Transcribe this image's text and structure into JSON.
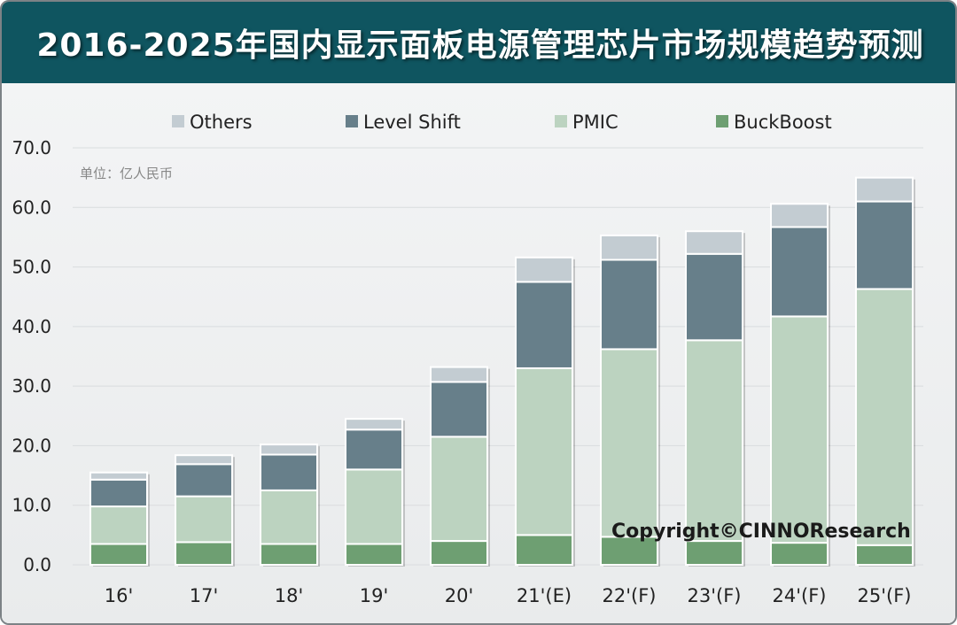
{
  "title": "2016-2025年国内显示面板电源管理芯片市场规模趋势预测",
  "unit_note": "单位：亿人民币",
  "copyright": "Copyright©CINNOResearch",
  "colors": {
    "BuckBoost": "#6e9f72",
    "PMIC": "#bcd3c0",
    "Level Shift": "#677f8a",
    "Others": "#c3ccd2"
  },
  "chart_data": {
    "type": "bar",
    "stacked": true,
    "title": "2016-2025年国内显示面板电源管理芯片市场规模趋势预测",
    "ylabel": "",
    "xlabel": "",
    "ylim": [
      0,
      70
    ],
    "yticks": [
      "0.0",
      "10.0",
      "20.0",
      "30.0",
      "40.0",
      "50.0",
      "60.0",
      "70.0"
    ],
    "grid": true,
    "legend_position": "top",
    "legend": [
      "Others",
      "Level Shift",
      "PMIC",
      "BuckBoost"
    ],
    "categories": [
      "16'",
      "17'",
      "18'",
      "19'",
      "20'",
      "21'(E)",
      "22'(F)",
      "23'(F)",
      "24'(F)",
      "25'(F)"
    ],
    "series": [
      {
        "name": "BuckBoost",
        "values": [
          3.5,
          3.8,
          3.5,
          3.5,
          4.0,
          5.0,
          4.7,
          4.0,
          3.7,
          3.3
        ]
      },
      {
        "name": "PMIC",
        "values": [
          6.3,
          7.7,
          9.0,
          12.5,
          17.5,
          28.0,
          31.5,
          33.7,
          38.0,
          43.0
        ]
      },
      {
        "name": "Level Shift",
        "values": [
          4.5,
          5.4,
          6.0,
          6.7,
          9.2,
          14.5,
          15.0,
          14.5,
          15.0,
          14.7
        ]
      },
      {
        "name": "Others",
        "values": [
          1.2,
          1.5,
          1.7,
          1.8,
          2.5,
          4.1,
          4.1,
          3.8,
          3.9,
          4.0
        ]
      }
    ]
  }
}
